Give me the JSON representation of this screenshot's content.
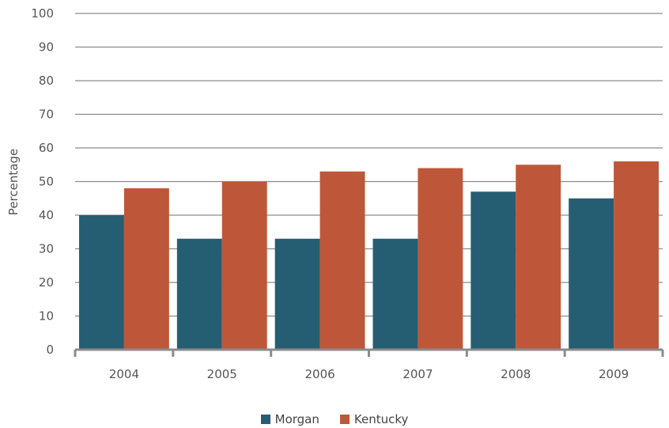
{
  "chart_data": {
    "type": "bar",
    "categories": [
      "2004",
      "2005",
      "2006",
      "2007",
      "2008",
      "2009"
    ],
    "series": [
      {
        "name": "Morgan",
        "values": [
          40,
          33,
          33,
          33,
          47,
          45
        ],
        "color": "#255e73"
      },
      {
        "name": "Kentucky",
        "values": [
          48,
          50,
          53,
          54,
          55,
          56
        ],
        "color": "#be573a"
      }
    ],
    "ylabel": "Percentage",
    "ylim": [
      0,
      100
    ],
    "yticks": [
      "0",
      "10",
      "20",
      "30",
      "40",
      "50",
      "60",
      "70",
      "80",
      "90",
      "100"
    ],
    "grid": true,
    "legend_position": "bottom"
  }
}
